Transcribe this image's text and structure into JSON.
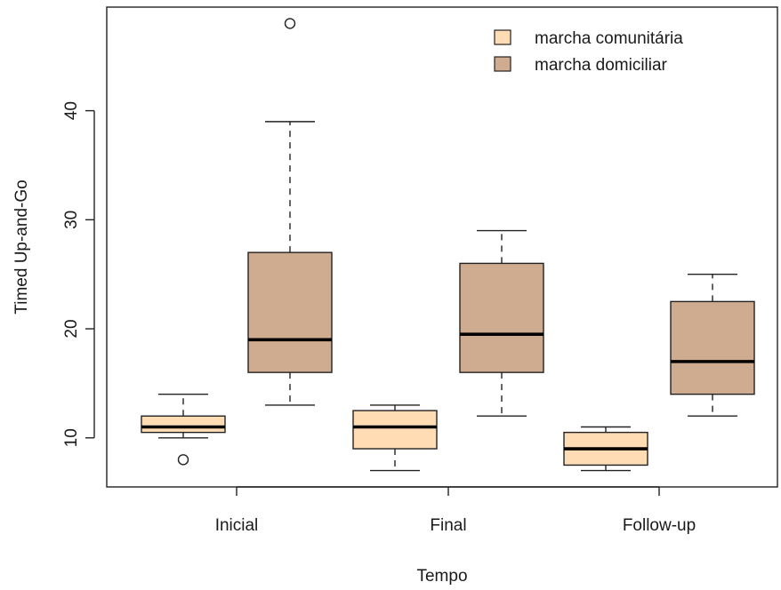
{
  "chart_data": {
    "type": "boxplot",
    "xlabel": "Tempo",
    "ylabel": "Timed Up-and-Go",
    "ylim": [
      5.5,
      49.5
    ],
    "yticks": [
      10,
      20,
      30,
      40
    ],
    "categories": [
      "Inicial",
      "Final",
      "Follow-up"
    ],
    "legend_position": "top-right",
    "series": [
      {
        "name": "marcha comunitária",
        "color": "#ffdcb4",
        "boxes": [
          {
            "category": "Inicial",
            "whisker_low": 10,
            "q1": 10.5,
            "median": 11,
            "q3": 12,
            "whisker_high": 14,
            "outliers": [
              8
            ]
          },
          {
            "category": "Final",
            "whisker_low": 7,
            "q1": 9,
            "median": 11,
            "q3": 12.5,
            "whisker_high": 13,
            "outliers": []
          },
          {
            "category": "Follow-up",
            "whisker_low": 7,
            "q1": 7.5,
            "median": 9,
            "q3": 10.5,
            "whisker_high": 11,
            "outliers": []
          }
        ]
      },
      {
        "name": "marcha domiciliar",
        "color": "#cfab8f",
        "boxes": [
          {
            "category": "Inicial",
            "whisker_low": 13,
            "q1": 16,
            "median": 19,
            "q3": 27,
            "whisker_high": 39,
            "outliers": [
              48
            ]
          },
          {
            "category": "Final",
            "whisker_low": 12,
            "q1": 16,
            "median": 19.5,
            "q3": 26,
            "whisker_high": 29,
            "outliers": []
          },
          {
            "category": "Follow-up",
            "whisker_low": 12,
            "q1": 14,
            "median": 17,
            "q3": 22.5,
            "whisker_high": 25,
            "outliers": []
          }
        ]
      }
    ]
  }
}
